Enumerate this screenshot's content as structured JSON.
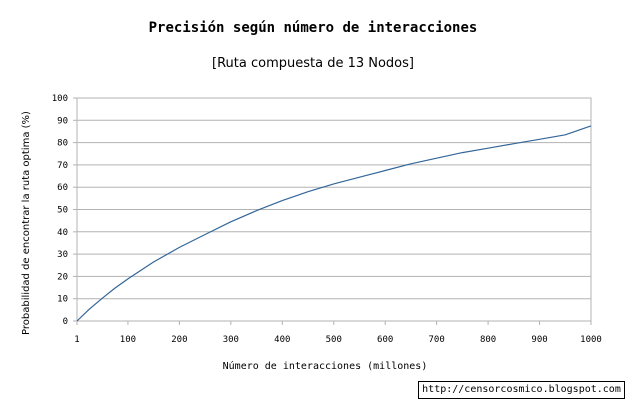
{
  "chart_data": {
    "type": "line",
    "title": "Precisión según número de interacciones",
    "subtitle": "[Ruta compuesta de 13 Nodos]",
    "xlabel": "Número de interacciones (millones)",
    "ylabel": "Probabilidad de encontrar la ruta optima (%)",
    "xlim": [
      1,
      1000
    ],
    "ylim": [
      0,
      100
    ],
    "x_ticks": [
      "1",
      "100",
      "200",
      "300",
      "400",
      "500",
      "600",
      "700",
      "800",
      "900",
      "1000"
    ],
    "y_ticks": [
      "0",
      "10",
      "20",
      "30",
      "40",
      "50",
      "60",
      "70",
      "80",
      "90",
      "100"
    ],
    "grid": "horizontal",
    "legend": "none",
    "series": [
      {
        "color": "#336699",
        "x": [
          1,
          25,
          50,
          75,
          100,
          150,
          200,
          250,
          300,
          350,
          400,
          450,
          500,
          550,
          600,
          650,
          700,
          750,
          800,
          850,
          900,
          950,
          1000
        ],
        "y": [
          0,
          5.3,
          10.2,
          14.8,
          18.9,
          26.5,
          33,
          38.8,
          44.5,
          49.5,
          54,
          58,
          61.5,
          64.5,
          67.5,
          70.5,
          73,
          75.5,
          77.5,
          79.5,
          81.5,
          83.5,
          87.5
        ]
      }
    ]
  },
  "credit": "http://censorcosmico.blogspot.com"
}
